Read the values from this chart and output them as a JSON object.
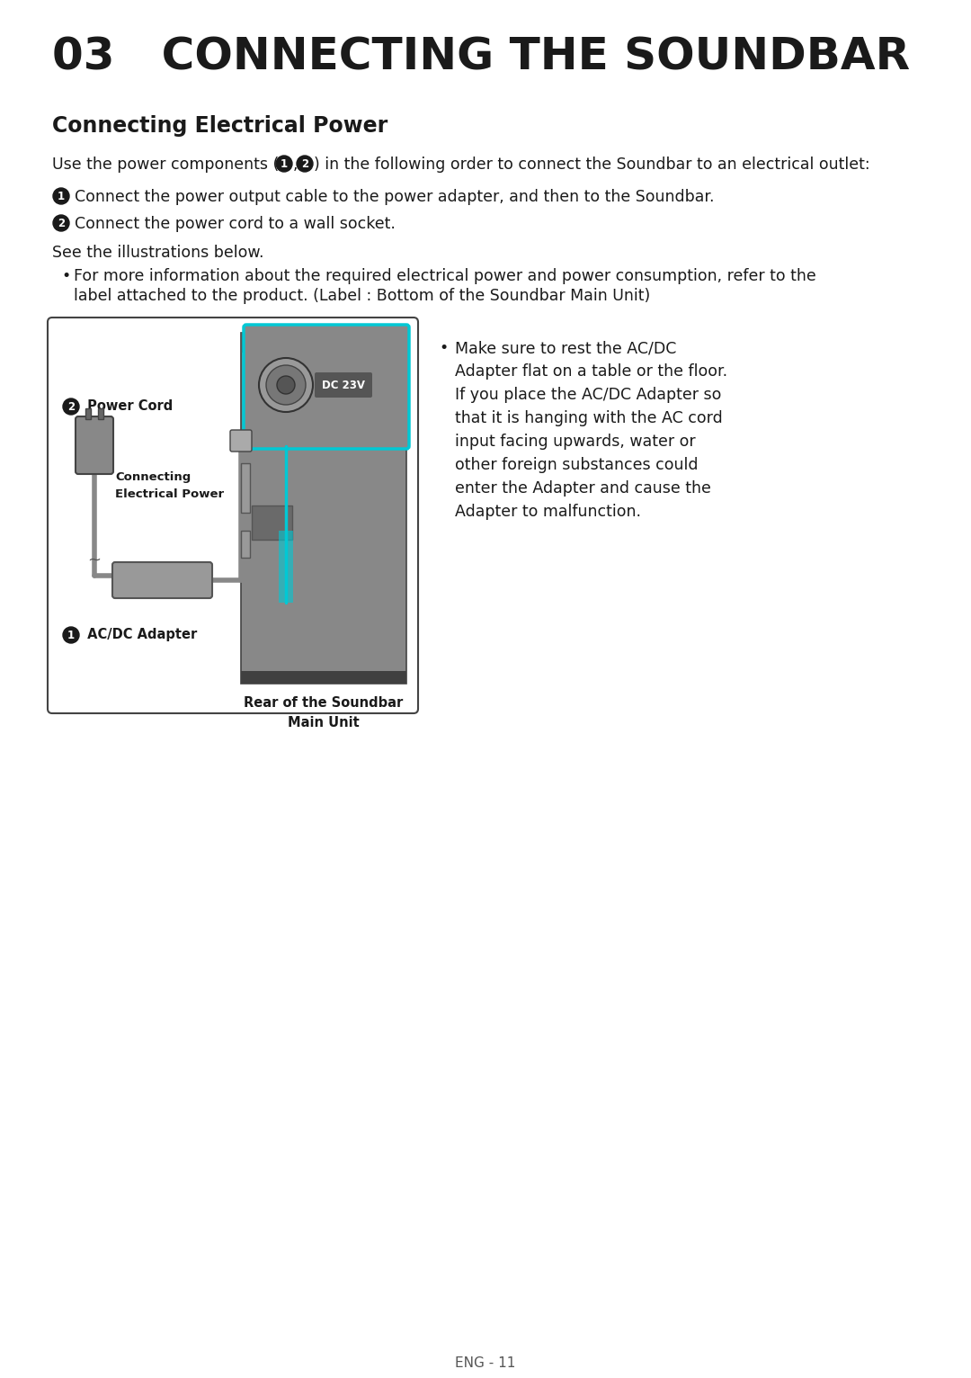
{
  "bg_color": "#ffffff",
  "title": "03   CONNECTING THE SOUNDBAR",
  "section_title": "Connecting Electrical Power",
  "intro_text": "Use the power components (¹²) in the following order to connect the Soundbar to an electrical outlet:",
  "step1_num": "❶",
  "step1_text": " Connect the power output cable to the power adapter, and then to the Soundbar.",
  "step2_num": "❷",
  "step2_text": " Connect the power cord to a wall socket.",
  "see_illustrations": "See the illustrations below.",
  "bullet1_line1": "For more information about the required electrical power and power consumption, refer to the",
  "bullet1_line2": "label attached to the product. (Label : Bottom of the Soundbar Main Unit)",
  "bullet2_lines": [
    "Make sure to rest the AC/DC",
    "Adapter flat on a table or the floor.",
    "If you place the AC/DC Adapter so",
    "that it is hanging with the AC cord",
    "input facing upwards, water or",
    "other foreign substances could",
    "enter the Adapter and cause the",
    "Adapter to malfunction."
  ],
  "diagram_label_power_cord": " Power Cord",
  "diagram_label_connecting": "Connecting",
  "diagram_label_elec_power": "Electrical Power",
  "diagram_label_adapter": " AC/DC Adapter",
  "diagram_label_rear": "Rear of the Soundbar",
  "diagram_label_main_unit": "Main Unit",
  "diagram_dc23v": "DC 23V",
  "page_number": "ENG - 11",
  "text_color": "#1a1a1a",
  "gray_mid": "#888888",
  "gray_dark": "#555555",
  "gray_light": "#aaaaaa",
  "gray_sb": "#7a7a7a",
  "gray_sb_dark": "#606060",
  "cyan_color": "#00c8d4",
  "box_border_color": "#444444",
  "title_fontsize": 36,
  "section_fontsize": 17,
  "body_fontsize": 12.5,
  "small_fontsize": 11
}
